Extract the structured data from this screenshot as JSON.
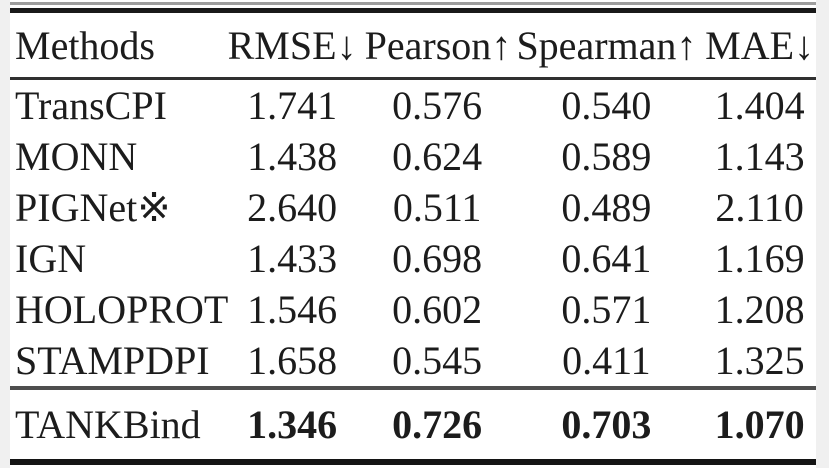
{
  "figure": {
    "background_color": "#f0f0f0",
    "sheet_color": "#ffffff",
    "text_color": "#1c1c1c",
    "rule_color": "#191919"
  },
  "table": {
    "columns": [
      {
        "label": "Methods"
      },
      {
        "label": "RMSE↓"
      },
      {
        "label": "Pearson↑"
      },
      {
        "label": "Spearman↑"
      },
      {
        "label": "MAE↓"
      }
    ],
    "rows": [
      {
        "method": "TransCPI",
        "rmse": "1.741",
        "pearson": "0.576",
        "spearman": "0.540",
        "mae": "1.404"
      },
      {
        "method": "MONN",
        "rmse": "1.438",
        "pearson": "0.624",
        "spearman": "0.589",
        "mae": "1.143"
      },
      {
        "method": "PIGNet※",
        "rmse": "2.640",
        "pearson": "0.511",
        "spearman": "0.489",
        "mae": "2.110"
      },
      {
        "method": "IGN",
        "rmse": "1.433",
        "pearson": "0.698",
        "spearman": "0.641",
        "mae": "1.169"
      },
      {
        "method": "HOLOPROT",
        "rmse": "1.546",
        "pearson": "0.602",
        "spearman": "0.571",
        "mae": "1.208"
      },
      {
        "method": "STAMPDPI",
        "rmse": "1.658",
        "pearson": "0.545",
        "spearman": "0.411",
        "mae": "1.325"
      }
    ],
    "best_row": {
      "method": "TANKBind",
      "rmse": "1.346",
      "pearson": "0.726",
      "spearman": "0.703",
      "mae": "1.070"
    }
  }
}
